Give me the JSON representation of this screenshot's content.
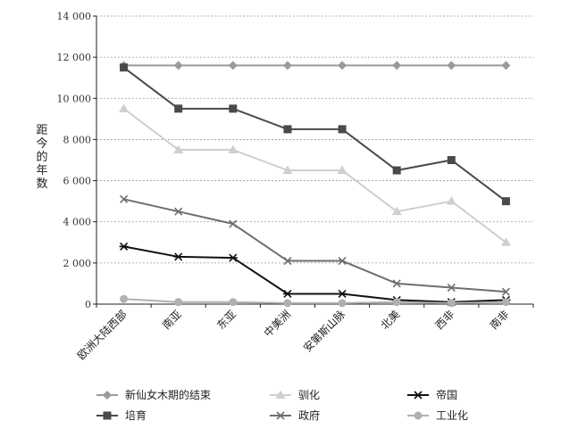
{
  "chart_data": {
    "type": "line",
    "ylabel": "距今的年数",
    "ylim": [
      0,
      14000
    ],
    "yticks": [
      0,
      2000,
      4000,
      6000,
      8000,
      10000,
      12000,
      14000
    ],
    "ytick_labels": [
      "0",
      "2 000",
      "4 000",
      "6 000",
      "8 000",
      "10 000",
      "12 000",
      "14 000"
    ],
    "grid": true,
    "legend_position": "bottom",
    "categories": [
      "欧洲大陆西部",
      "南亚",
      "东亚",
      "中美洲",
      "安第斯山脉",
      "北美",
      "西非",
      "南非"
    ],
    "series": [
      {
        "name": "新仙女木期的结束",
        "marker": "diamond",
        "color": "#9a9a9a",
        "values": [
          11600,
          11600,
          11600,
          11600,
          11600,
          11600,
          11600,
          11600
        ]
      },
      {
        "name": "培育",
        "marker": "square",
        "color": "#4a4a4a",
        "values": [
          11500,
          9500,
          9500,
          8500,
          8500,
          6500,
          7000,
          5000
        ]
      },
      {
        "name": "驯化",
        "marker": "triangle",
        "color": "#cfcfcf",
        "values": [
          9500,
          7500,
          7500,
          6500,
          6500,
          4500,
          5000,
          3000
        ]
      },
      {
        "name": "政府",
        "marker": "x",
        "color": "#6e6e6e",
        "values": [
          5100,
          4500,
          3900,
          2100,
          2100,
          1000,
          800,
          600
        ]
      },
      {
        "name": "帝国",
        "marker": "asterisk",
        "color": "#111111",
        "values": [
          2800,
          2300,
          2250,
          500,
          500,
          200,
          100,
          200
        ]
      },
      {
        "name": "工业化",
        "marker": "circle",
        "color": "#b0b0b0",
        "values": [
          250,
          100,
          100,
          50,
          50,
          100,
          50,
          100
        ]
      }
    ],
    "legend_order": [
      0,
      2,
      4,
      1,
      3,
      5
    ]
  }
}
